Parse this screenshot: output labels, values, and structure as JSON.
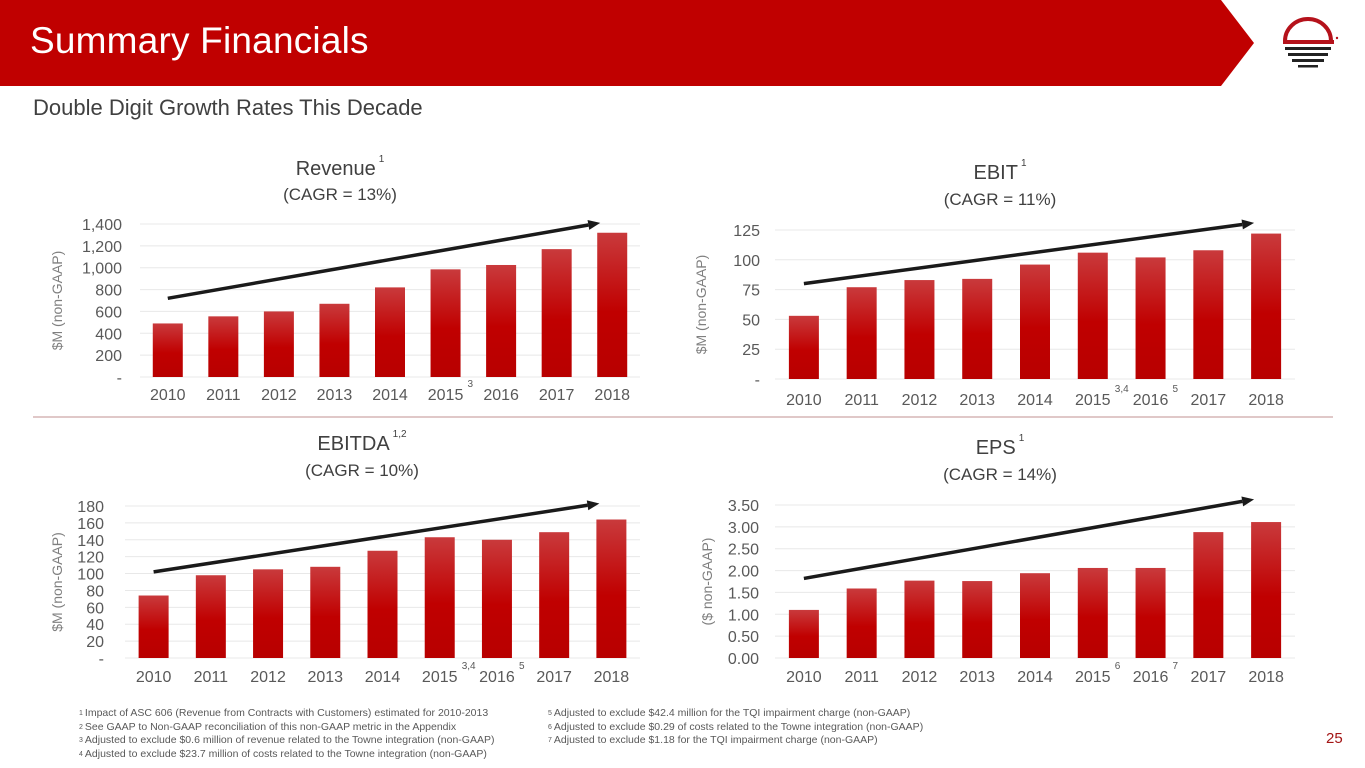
{
  "header": {
    "title": "Summary Financials",
    "subtitle": "Double Digit Growth Rates This Decade",
    "brand_color": "#c00000",
    "logo": "company-logo-icon"
  },
  "page_number": "25",
  "chart_data": [
    {
      "type": "bar",
      "title": "Revenue",
      "title_note": "1",
      "subtitle": "(CAGR = 13%)",
      "ylabel": "$M (non-GAAP)",
      "xlabel": "",
      "categories": [
        "2010",
        "2011",
        "2012",
        "2013",
        "2014",
        "2015",
        "2016",
        "2017",
        "2018"
      ],
      "category_notes": [
        "",
        "",
        "",
        "",
        "",
        "3",
        "",
        "",
        ""
      ],
      "values": [
        490,
        555,
        600,
        670,
        820,
        985,
        1025,
        1170,
        1320
      ],
      "ylim": [
        0,
        1400
      ],
      "yticks": [
        0,
        200,
        400,
        600,
        800,
        1000,
        1200,
        1400
      ],
      "ytick_labels": [
        "-",
        "200",
        "400",
        "600",
        "800",
        "1,000",
        "1,200",
        "1,400"
      ],
      "grid": true,
      "trend_arrow": {
        "from": [
          2010,
          720
        ],
        "to": [
          2018,
          1410
        ]
      },
      "bar_color": "#c00000"
    },
    {
      "type": "bar",
      "title": "EBIT",
      "title_note": "1",
      "subtitle": "(CAGR = 11%)",
      "ylabel": "$M (non-GAAP)",
      "xlabel": "",
      "categories": [
        "2010",
        "2011",
        "2012",
        "2013",
        "2014",
        "2015",
        "2016",
        "2017",
        "2018"
      ],
      "category_notes": [
        "",
        "",
        "",
        "",
        "",
        "3,4",
        "5",
        "",
        ""
      ],
      "values": [
        53,
        77,
        83,
        84,
        96,
        106,
        102,
        108,
        122
      ],
      "ylim": [
        0,
        125
      ],
      "yticks": [
        0,
        25,
        50,
        75,
        100,
        125
      ],
      "ytick_labels": [
        "-",
        "25",
        "50",
        "75",
        "100",
        "125"
      ],
      "grid": true,
      "trend_arrow": {
        "from": [
          2010,
          80
        ],
        "to": [
          2018,
          131
        ]
      },
      "bar_color": "#c00000"
    },
    {
      "type": "bar",
      "title": "EBITDA",
      "title_note": "1,2",
      "subtitle": "(CAGR = 10%)",
      "ylabel": "$M (non-GAAP)",
      "xlabel": "",
      "categories": [
        "2010",
        "2011",
        "2012",
        "2013",
        "2014",
        "2015",
        "2016",
        "2017",
        "2018"
      ],
      "category_notes": [
        "",
        "",
        "",
        "",
        "",
        "3,4",
        "5",
        "",
        ""
      ],
      "values": [
        74,
        98,
        105,
        108,
        127,
        143,
        140,
        149,
        164
      ],
      "ylim": [
        0,
        180
      ],
      "yticks": [
        0,
        20,
        40,
        60,
        80,
        100,
        120,
        140,
        160,
        180
      ],
      "ytick_labels": [
        "-",
        "20",
        "40",
        "60",
        "80",
        "100",
        "120",
        "140",
        "160",
        "180"
      ],
      "grid": true,
      "trend_arrow": {
        "from": [
          2010,
          102
        ],
        "to": [
          2018,
          183
        ]
      },
      "bar_color": "#c00000"
    },
    {
      "type": "bar",
      "title": "EPS",
      "title_note": "1",
      "subtitle": "(CAGR = 14%)",
      "ylabel": "($ non-GAAP)",
      "xlabel": "",
      "categories": [
        "2010",
        "2011",
        "2012",
        "2013",
        "2014",
        "2015",
        "2016",
        "2017",
        "2018"
      ],
      "category_notes": [
        "",
        "",
        "",
        "",
        "",
        "6",
        "7",
        "",
        ""
      ],
      "values": [
        1.1,
        1.59,
        1.77,
        1.76,
        1.94,
        2.06,
        2.06,
        2.88,
        3.11
      ],
      "ylim": [
        0,
        3.5
      ],
      "yticks": [
        0,
        0.5,
        1.0,
        1.5,
        2.0,
        2.5,
        3.0,
        3.5
      ],
      "ytick_labels": [
        "0.00",
        "0.50",
        "1.00",
        "1.50",
        "2.00",
        "2.50",
        "3.00",
        "3.50"
      ],
      "grid": true,
      "trend_arrow": {
        "from": [
          2010,
          1.82
        ],
        "to": [
          2018,
          3.63
        ]
      },
      "bar_color": "#c00000"
    }
  ],
  "footnotes_left": [
    {
      "num": "1",
      "text": "Impact of ASC 606 (Revenue from Contracts with Customers) estimated for 2010-2013"
    },
    {
      "num": "2",
      "text": "See GAAP to Non-GAAP reconciliation of this non-GAAP metric in the Appendix"
    },
    {
      "num": "3",
      "text": "Adjusted to exclude $0.6 million of revenue related to the Towne integration (non-GAAP)"
    },
    {
      "num": "4",
      "text": "Adjusted to exclude $23.7 million of costs related to the Towne integration (non-GAAP)"
    }
  ],
  "footnotes_right": [
    {
      "num": "5",
      "text": "Adjusted to exclude $42.4 million for the TQI impairment charge (non-GAAP)"
    },
    {
      "num": "6",
      "text": "Adjusted to exclude $0.29 of costs related to the Towne integration (non-GAAP)"
    },
    {
      "num": "7",
      "text": "Adjusted to exclude $1.18 for the TQI impairment charge (non-GAAP)"
    }
  ]
}
